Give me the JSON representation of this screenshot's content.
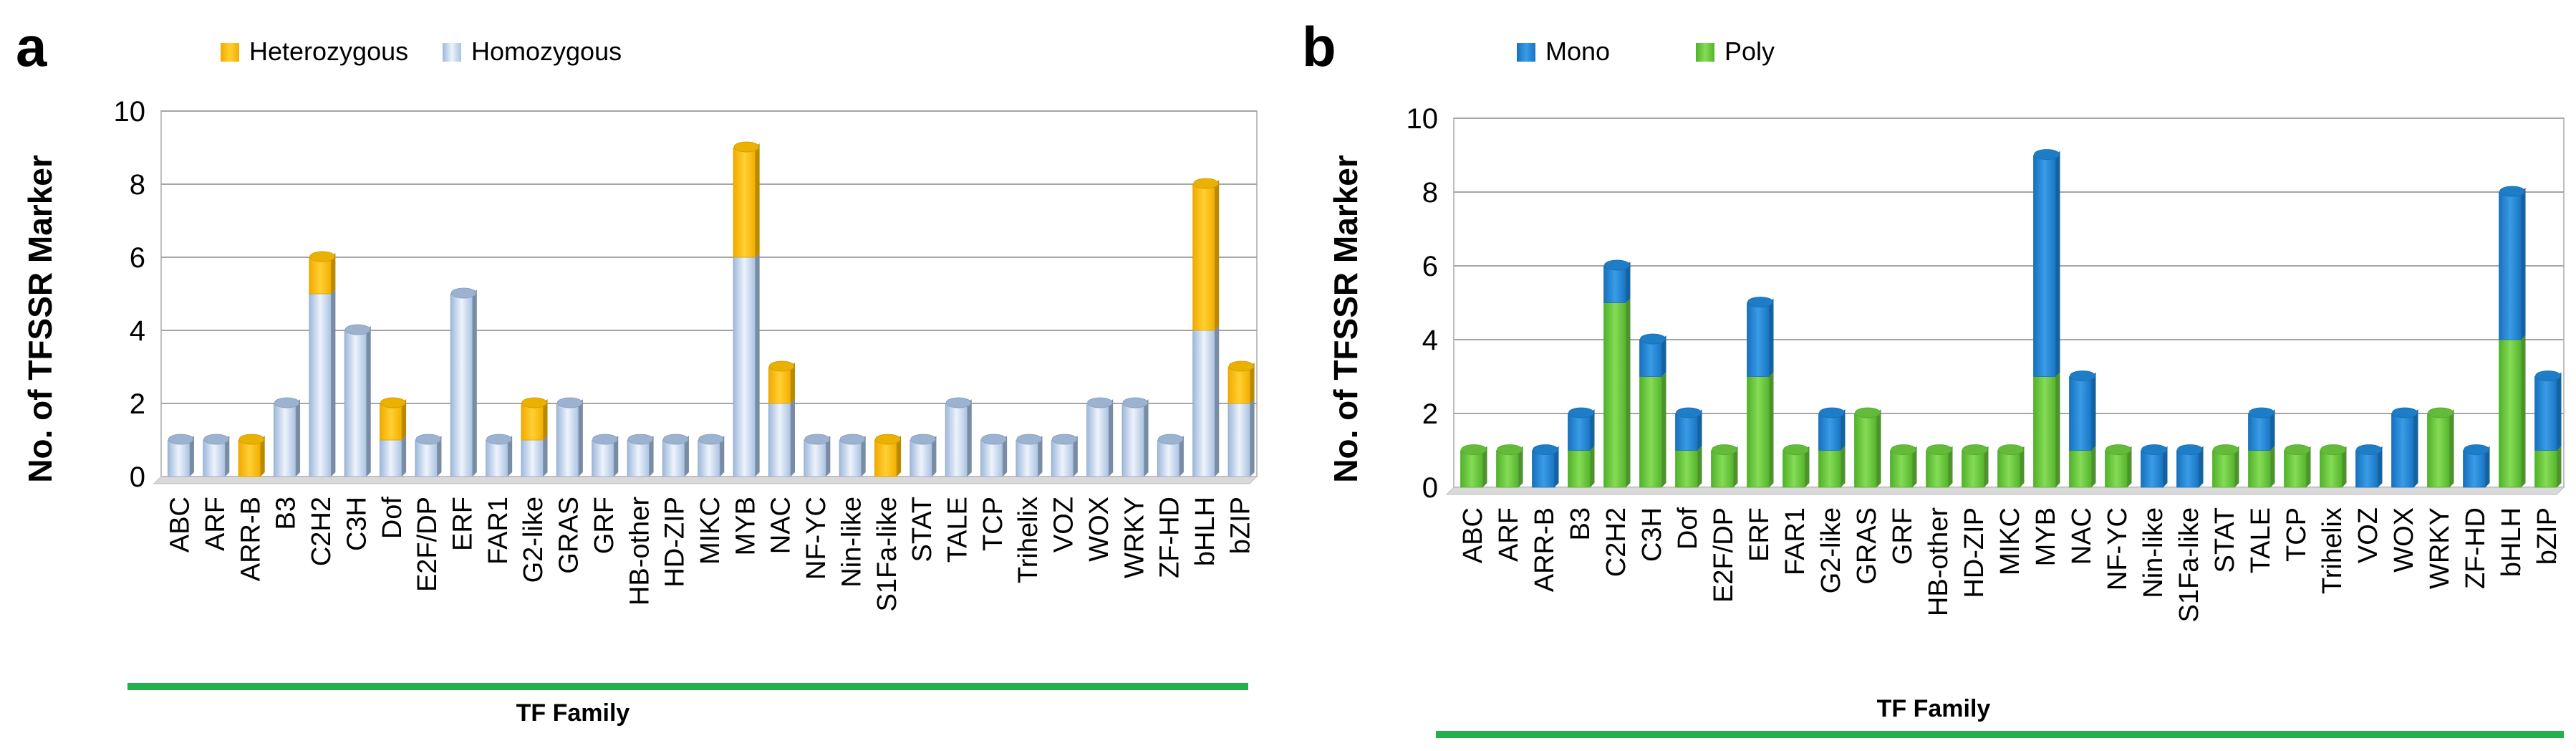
{
  "colors": {
    "heterozygous": "#FFC000",
    "homozygous": "#C6D9F1",
    "mono": "#1F88D8",
    "poly": "#6CCB3E",
    "green_bar": "#22B14C"
  },
  "panels": [
    {
      "letter": "a",
      "legend": [
        "Heterozygous",
        "Homozygous"
      ],
      "ylabel": "No. of TFSSR Marker",
      "xlabel": "TF Family"
    },
    {
      "letter": "b",
      "legend": [
        "Mono",
        "Poly"
      ],
      "ylabel": "No. of TFSSR Marker",
      "xlabel": "TF Family"
    }
  ],
  "chart_data": [
    {
      "type": "bar",
      "stacked": true,
      "title": "",
      "xlabel": "TF Family",
      "ylabel": "No. of TFSSR Marker",
      "ylim": [
        0,
        10
      ],
      "yticks": [
        0,
        2,
        4,
        6,
        8,
        10
      ],
      "categories": [
        "ABC",
        "ARF",
        "ARR-B",
        "B3",
        "C2H2",
        "C3H",
        "Dof",
        "E2F/DP",
        "ERF",
        "FAR1",
        "G2-like",
        "GRAS",
        "GRF",
        "HB-other",
        "HD-ZIP",
        "MIKC",
        "MYB",
        "NAC",
        "NF-YC",
        "Nin-like",
        "S1Fa-like",
        "STAT",
        "TALE",
        "TCP",
        "Trihelix",
        "VOZ",
        "WOX",
        "WRKY",
        "ZF-HD",
        "bHLH",
        "bZIP"
      ],
      "series": [
        {
          "name": "Homozygous",
          "values": [
            1,
            1,
            0,
            2,
            5,
            4,
            1,
            1,
            5,
            1,
            1,
            2,
            1,
            1,
            1,
            1,
            6,
            2,
            1,
            1,
            0,
            1,
            2,
            1,
            1,
            1,
            2,
            2,
            1,
            4,
            2
          ]
        },
        {
          "name": "Heterozygous",
          "values": [
            0,
            0,
            1,
            0,
            1,
            0,
            1,
            0,
            0,
            0,
            1,
            0,
            0,
            0,
            0,
            0,
            3,
            1,
            0,
            0,
            1,
            0,
            0,
            0,
            0,
            0,
            0,
            0,
            0,
            4,
            1
          ]
        }
      ],
      "legend": [
        "Heterozygous",
        "Homozygous"
      ],
      "legend_position": "top"
    },
    {
      "type": "bar",
      "stacked": true,
      "title": "",
      "xlabel": "TF Family",
      "ylabel": "No. of TFSSR Marker",
      "ylim": [
        0,
        10
      ],
      "yticks": [
        0,
        2,
        4,
        6,
        8,
        10
      ],
      "categories": [
        "ABC",
        "ARF",
        "ARR-B",
        "B3",
        "C2H2",
        "C3H",
        "Dof",
        "E2F/DP",
        "ERF",
        "FAR1",
        "G2-like",
        "GRAS",
        "GRF",
        "HB-other",
        "HD-ZIP",
        "MIKC",
        "MYB",
        "NAC",
        "NF-YC",
        "Nin-like",
        "S1Fa-like",
        "STAT",
        "TALE",
        "TCP",
        "Trihelix",
        "VOZ",
        "WOX",
        "WRKY",
        "ZF-HD",
        "bHLH",
        "bZIP"
      ],
      "series": [
        {
          "name": "Poly",
          "values": [
            1,
            1,
            0,
            1,
            5,
            3,
            1,
            1,
            3,
            1,
            1,
            2,
            1,
            1,
            1,
            1,
            3,
            1,
            1,
            0,
            0,
            1,
            1,
            1,
            1,
            0,
            0,
            2,
            0,
            4,
            1
          ]
        },
        {
          "name": "Mono",
          "values": [
            0,
            0,
            1,
            1,
            1,
            1,
            1,
            0,
            2,
            0,
            1,
            0,
            0,
            0,
            0,
            0,
            6,
            2,
            0,
            1,
            1,
            0,
            1,
            0,
            0,
            1,
            2,
            0,
            1,
            4,
            2
          ]
        }
      ],
      "legend": [
        "Mono",
        "Poly"
      ],
      "legend_position": "top"
    }
  ]
}
